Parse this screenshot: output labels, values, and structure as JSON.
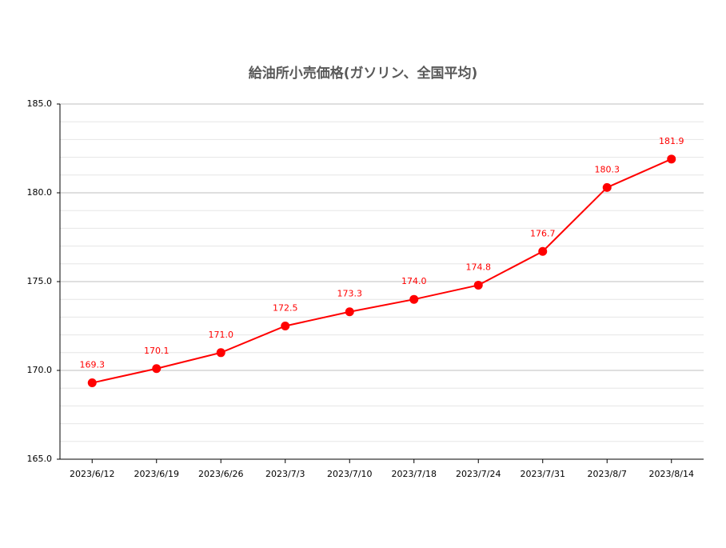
{
  "chart_data": {
    "type": "line",
    "title": "給油所小売価格(ガソリン、全国平均)",
    "categories": [
      "2023/6/12",
      "2023/6/19",
      "2023/6/26",
      "2023/7/3",
      "2023/7/10",
      "2023/7/18",
      "2023/7/24",
      "2023/7/31",
      "2023/8/7",
      "2023/8/14"
    ],
    "series": [
      {
        "name": "給油所小売価格",
        "color": "#ff0000",
        "values": [
          169.3,
          170.1,
          171.0,
          172.5,
          173.3,
          174.0,
          174.8,
          176.7,
          180.3,
          181.9
        ],
        "value_labels": [
          "169.3",
          "170.1",
          "171.0",
          "172.5",
          "173.3",
          "174.0",
          "174.8",
          "176.7",
          "180.3",
          "181.9"
        ]
      }
    ],
    "ylim": [
      165,
      185
    ],
    "yticks": [
      {
        "value": 165,
        "label": "165.0"
      },
      {
        "value": 170,
        "label": "170.0"
      },
      {
        "value": 175,
        "label": "175.0"
      },
      {
        "value": 180,
        "label": "180.0"
      },
      {
        "value": 185,
        "label": "185.0"
      }
    ],
    "minor_yticks": [
      166,
      167,
      168,
      169,
      171,
      172,
      173,
      174,
      176,
      177,
      178,
      179,
      181,
      182,
      183,
      184
    ],
    "grid": true
  }
}
